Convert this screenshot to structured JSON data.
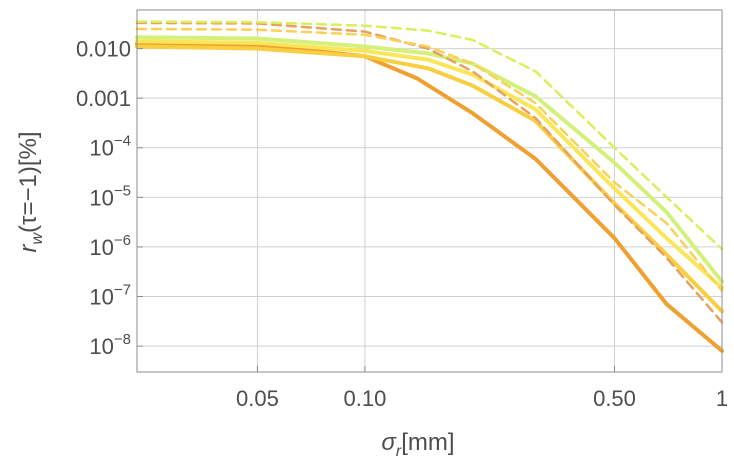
{
  "chart_data": {
    "type": "line",
    "xlabel": "σ_r[mm]",
    "xlabel_parts": {
      "sym": "σ",
      "sub": "r",
      "unit": "[mm]"
    },
    "ylabel": "r_w(τ=−1)[%]",
    "ylabel_parts": {
      "sym": "r",
      "sub": "w",
      "rest": "(τ=−1)[%]"
    },
    "x_scale": "log",
    "y_scale": "log",
    "xlim": [
      0.023,
      1.0
    ],
    "ylim": [
      3e-09,
      0.06
    ],
    "grid": true,
    "x_ticks": [
      {
        "value": 0.05,
        "label": "0.05"
      },
      {
        "value": 0.1,
        "label": "0.10"
      },
      {
        "value": 0.5,
        "label": "0.50"
      },
      {
        "value": 1.0,
        "label": "1"
      }
    ],
    "y_ticks": [
      {
        "value": 0.01,
        "label": "0.010"
      },
      {
        "value": 0.001,
        "label": "0.001"
      },
      {
        "value": 0.0001,
        "base": "10",
        "exp": "-4"
      },
      {
        "value": 1e-05,
        "base": "10",
        "exp": "-5"
      },
      {
        "value": 1e-06,
        "base": "10",
        "exp": "-6"
      },
      {
        "value": 1e-07,
        "base": "10",
        "exp": "-7"
      },
      {
        "value": 1e-08,
        "base": "10",
        "exp": "-8"
      }
    ],
    "series": [
      {
        "color": "#f0a030",
        "dashed": false,
        "points": [
          [
            0.023,
            0.0125
          ],
          [
            0.05,
            0.012
          ],
          [
            0.1,
            0.007
          ],
          [
            0.14,
            0.0025
          ],
          [
            0.2,
            0.0005
          ],
          [
            0.3,
            6e-05
          ],
          [
            0.5,
            1.5e-06
          ],
          [
            0.7,
            7e-08
          ],
          [
            1.0,
            8e-09
          ]
        ]
      },
      {
        "color": "#f7cf40",
        "dashed": false,
        "points": [
          [
            0.023,
            0.011
          ],
          [
            0.05,
            0.01
          ],
          [
            0.1,
            0.007
          ],
          [
            0.15,
            0.004
          ],
          [
            0.2,
            0.0018
          ],
          [
            0.3,
            0.00035
          ],
          [
            0.5,
            7.5e-06
          ],
          [
            0.7,
            7e-07
          ],
          [
            1.0,
            5e-08
          ]
        ]
      },
      {
        "color": "#fae658",
        "dashed": false,
        "points": [
          [
            0.023,
            0.014
          ],
          [
            0.05,
            0.013
          ],
          [
            0.1,
            0.009
          ],
          [
            0.15,
            0.006
          ],
          [
            0.2,
            0.003
          ],
          [
            0.3,
            0.0006
          ],
          [
            0.5,
            1.5e-05
          ],
          [
            0.7,
            1.5e-06
          ],
          [
            1.0,
            1.5e-07
          ]
        ]
      },
      {
        "color": "#d4f07a",
        "dashed": false,
        "points": [
          [
            0.023,
            0.017
          ],
          [
            0.05,
            0.016
          ],
          [
            0.1,
            0.011
          ],
          [
            0.15,
            0.008
          ],
          [
            0.2,
            0.005
          ],
          [
            0.3,
            0.0011
          ],
          [
            0.5,
            5e-05
          ],
          [
            0.7,
            5e-06
          ],
          [
            1.0,
            2e-07
          ]
        ]
      },
      {
        "color": "#e8a060",
        "dashed": true,
        "points": [
          [
            0.023,
            0.033
          ],
          [
            0.05,
            0.032
          ],
          [
            0.1,
            0.022
          ],
          [
            0.15,
            0.01
          ],
          [
            0.2,
            0.0035
          ],
          [
            0.3,
            0.0004
          ],
          [
            0.5,
            7e-06
          ],
          [
            0.7,
            6e-07
          ],
          [
            1.0,
            3e-08
          ]
        ]
      },
      {
        "color": "#fad155",
        "dashed": true,
        "points": [
          [
            0.023,
            0.025
          ],
          [
            0.05,
            0.024
          ],
          [
            0.1,
            0.019
          ],
          [
            0.15,
            0.011
          ],
          [
            0.2,
            0.005
          ],
          [
            0.3,
            0.0008
          ],
          [
            0.5,
            2e-05
          ],
          [
            0.7,
            3e-06
          ],
          [
            1.0,
            1.3e-07
          ]
        ]
      },
      {
        "color": "#dcee5a",
        "dashed": true,
        "points": [
          [
            0.023,
            0.035
          ],
          [
            0.05,
            0.034
          ],
          [
            0.1,
            0.029
          ],
          [
            0.15,
            0.023
          ],
          [
            0.2,
            0.015
          ],
          [
            0.3,
            0.0035
          ],
          [
            0.5,
            0.0001
          ],
          [
            0.7,
            1e-05
          ],
          [
            1.0,
            9e-07
          ]
        ]
      }
    ]
  }
}
